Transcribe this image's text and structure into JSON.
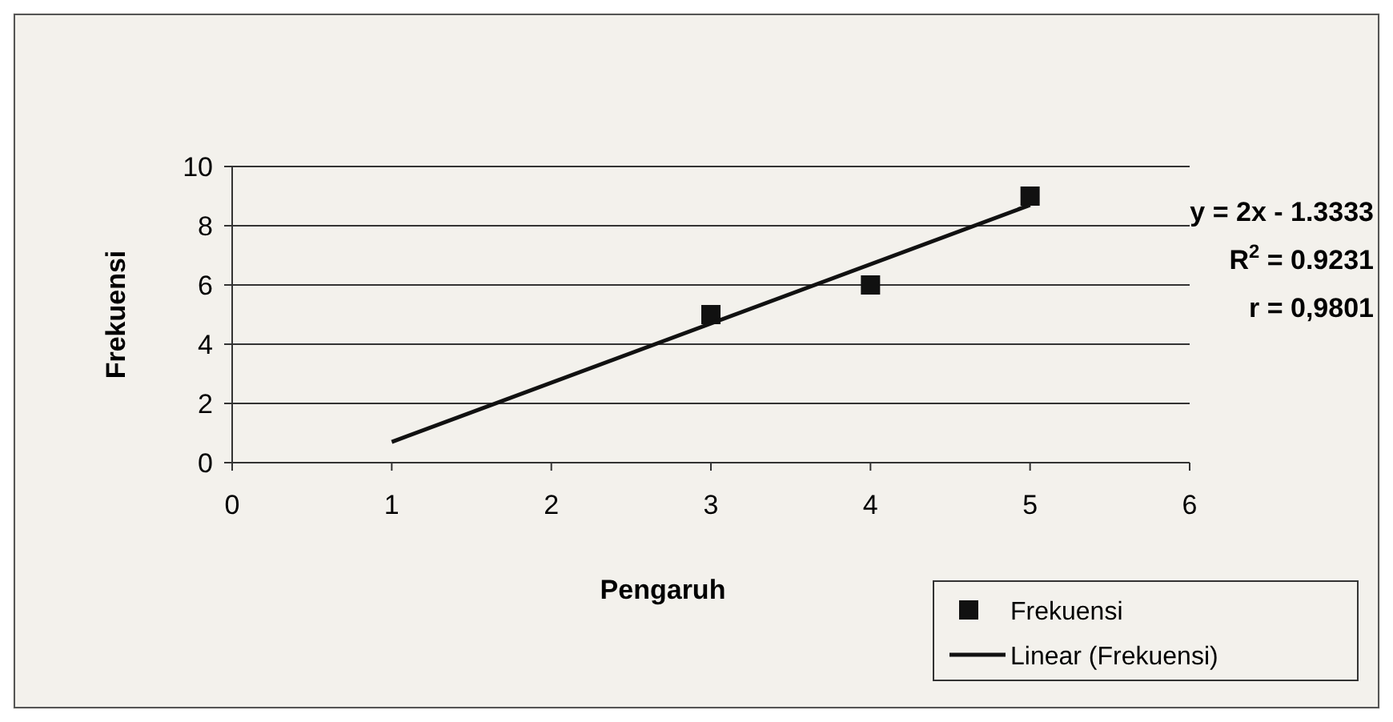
{
  "chart_data": {
    "type": "scatter",
    "xlabel": "Pengaruh",
    "ylabel": "Frekuensi",
    "xlim": [
      0,
      6
    ],
    "xticks": [
      0,
      1,
      2,
      3,
      4,
      5,
      6
    ],
    "ylim": [
      0,
      10
    ],
    "yticks": [
      0,
      2,
      4,
      6,
      8,
      10
    ],
    "grid": "y",
    "legend": "bottom right",
    "marker": "square",
    "series": [
      {
        "name": "Frekuensi",
        "color": "#111111",
        "x": [
          3,
          4,
          5
        ],
        "values": [
          5,
          6,
          9
        ]
      },
      {
        "name": "Linear (Frekuensi)",
        "type": "line",
        "color": "#111111",
        "x": [
          1,
          5
        ],
        "values": [
          0.7,
          8.7
        ],
        "line_style": "solid",
        "marker": "none"
      }
    ],
    "annotations": [
      "y = 2x - 1.3333",
      "R$^{2}$ = 0.9231",
      "r = 0,9801"
    ]
  }
}
